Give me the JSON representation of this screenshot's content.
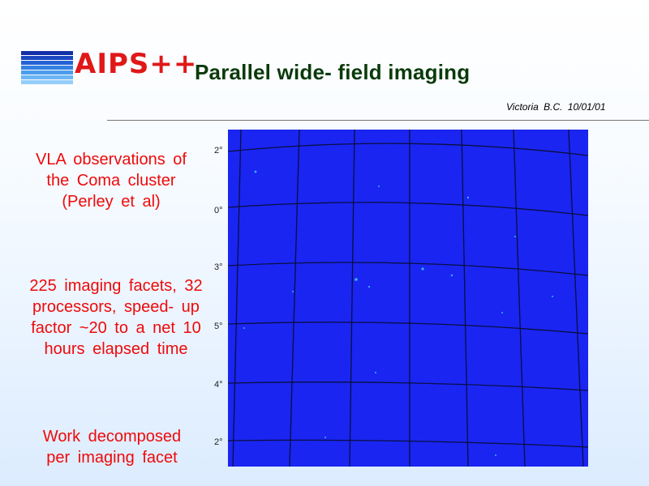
{
  "header": {
    "logo_text": "AIPS++",
    "title": "Parallel  wide- field  imaging",
    "byline": "Victoria  B.C.  10/01/01"
  },
  "paragraphs": {
    "p1": "VLA  observations of  the  Coma cluster  (Perley  et al)",
    "p2": "225  imaging  facets, 32  processors, speed- up  factor ~20  to  a  net  10 hours  elapsed  time",
    "p3": "Work  decomposed per  imaging  facet"
  },
  "image": {
    "dec_labels": [
      "2°",
      "0°",
      "3°",
      "5°",
      "4°",
      "2°"
    ],
    "background_color": "#1a25f2"
  },
  "colors": {
    "title": "#0a3a0a",
    "body_text": "#ee0a0a",
    "logo": "#e01818"
  }
}
